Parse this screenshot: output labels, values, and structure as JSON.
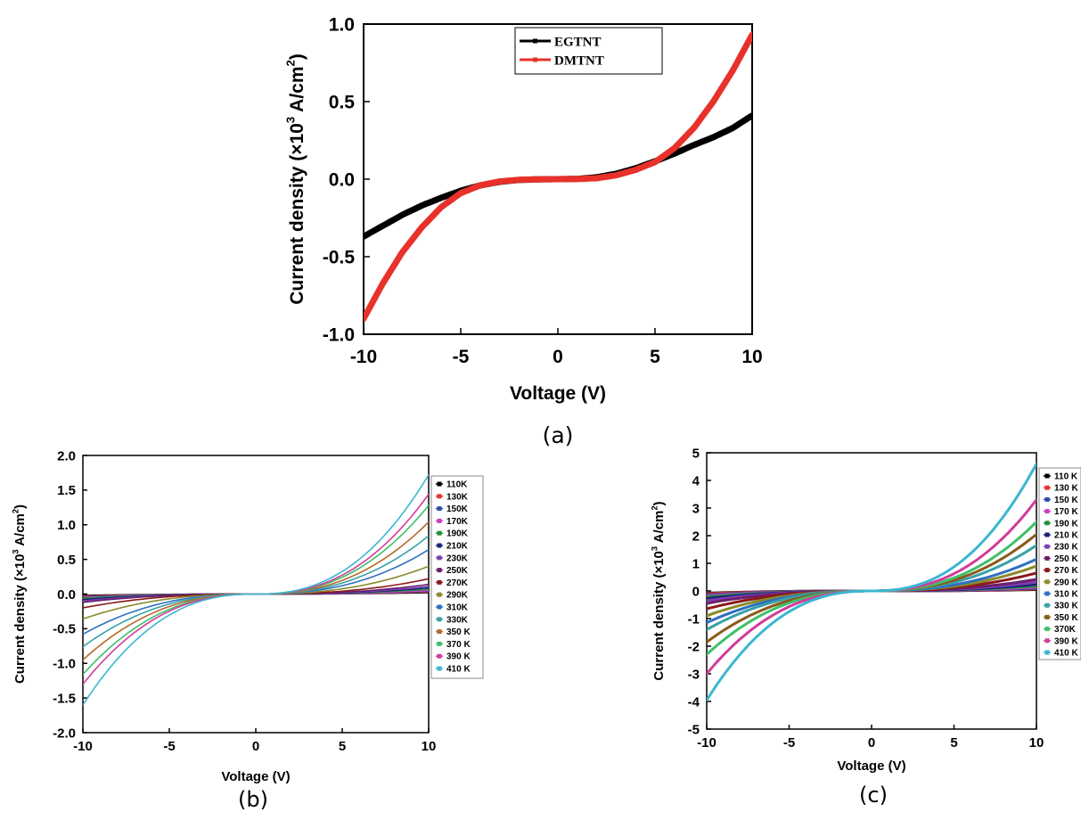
{
  "chart_data": [
    {
      "type": "line",
      "panel_label": "(a)",
      "xlabel": "Voltage (V)",
      "ylabel_main": "Current density (×10",
      "ylabel_exp": "3",
      "ylabel_unit": " A/cm",
      "ylabel_unit_exp": "2",
      "ylabel_close": ")",
      "xlim": [
        -10,
        10
      ],
      "ylim": [
        -1.0,
        1.0
      ],
      "xticks": [
        "-10",
        "-5",
        "0",
        "5",
        "10"
      ],
      "yticks": [
        "-1.0",
        "-0.5",
        "0.0",
        "0.5",
        "1.0"
      ],
      "legend_position": "top-right",
      "series": [
        {
          "name": "EGTNT",
          "color": "#000000",
          "x": [
            -10,
            -9,
            -8,
            -7,
            -6,
            -5,
            -4,
            -3,
            -2,
            -1,
            0,
            1,
            2,
            3,
            4,
            5,
            6,
            7,
            8,
            9,
            10
          ],
          "y": [
            -0.37,
            -0.3,
            -0.23,
            -0.17,
            -0.12,
            -0.075,
            -0.04,
            -0.017,
            -0.005,
            -0.001,
            0,
            0.002,
            0.012,
            0.035,
            0.07,
            0.115,
            0.165,
            0.22,
            0.27,
            0.33,
            0.41
          ]
        },
        {
          "name": "DMTNT",
          "color": "#e8312a",
          "x": [
            -10,
            -9,
            -8,
            -7,
            -6,
            -5,
            -4,
            -3,
            -2,
            -1,
            0,
            1,
            2,
            3,
            4,
            5,
            6,
            7,
            8,
            9,
            10
          ],
          "y": [
            -0.9,
            -0.67,
            -0.47,
            -0.31,
            -0.18,
            -0.09,
            -0.04,
            -0.015,
            -0.004,
            -0.001,
            0,
            0.001,
            0.006,
            0.025,
            0.06,
            0.11,
            0.2,
            0.33,
            0.5,
            0.7,
            0.93
          ]
        }
      ]
    },
    {
      "type": "line",
      "panel_label": "(b)",
      "xlabel": "Voltage (V)",
      "ylabel_main": "Current density (×10",
      "ylabel_exp": "3",
      "ylabel_unit": " A/cm",
      "ylabel_unit_exp": "2",
      "ylabel_close": ")",
      "xlim": [
        -10,
        10
      ],
      "ylim": [
        -2.0,
        2.0
      ],
      "xticks": [
        "-10",
        "-5",
        "0",
        "5",
        "10"
      ],
      "yticks": [
        "-2.0",
        "-1.5",
        "-1.0",
        "-0.5",
        "0.0",
        "0.5",
        "1.0",
        "1.5",
        "2.0"
      ],
      "legend_position": "right",
      "series": [
        {
          "name": "110K",
          "color": "#000000",
          "neg10": -0.02,
          "pos10": 0.02
        },
        {
          "name": "130K",
          "color": "#e8312a",
          "neg10": -0.03,
          "pos10": 0.03
        },
        {
          "name": "150K",
          "color": "#2b4aa8",
          "neg10": -0.04,
          "pos10": 0.04
        },
        {
          "name": "170K",
          "color": "#c83fc8",
          "neg10": -0.05,
          "pos10": 0.05
        },
        {
          "name": "190K",
          "color": "#1f8f3a",
          "neg10": -0.06,
          "pos10": 0.07
        },
        {
          "name": "210K",
          "color": "#1b1f7a",
          "neg10": -0.08,
          "pos10": 0.09
        },
        {
          "name": "230K",
          "color": "#7a3fb0",
          "neg10": -0.1,
          "pos10": 0.11
        },
        {
          "name": "250K",
          "color": "#6b1f6b",
          "neg10": -0.12,
          "pos10": 0.14
        },
        {
          "name": "270K",
          "color": "#8b1a1a",
          "neg10": -0.2,
          "pos10": 0.22
        },
        {
          "name": "290K",
          "color": "#8a8a2a",
          "neg10": -0.36,
          "pos10": 0.4
        },
        {
          "name": "310K",
          "color": "#2f6fc0",
          "neg10": -0.58,
          "pos10": 0.64
        },
        {
          "name": "330K",
          "color": "#3aa0a8",
          "neg10": -0.76,
          "pos10": 0.84
        },
        {
          "name": "350 K",
          "color": "#b56a2a",
          "neg10": -0.95,
          "pos10": 1.04
        },
        {
          "name": "370 K",
          "color": "#3fbf6a",
          "neg10": -1.16,
          "pos10": 1.28
        },
        {
          "name": "390 K",
          "color": "#d03c9a",
          "neg10": -1.3,
          "pos10": 1.44
        },
        {
          "name": "410 K",
          "color": "#3ab7d0",
          "neg10": -1.6,
          "pos10": 1.72
        }
      ]
    },
    {
      "type": "line",
      "panel_label": "(c)",
      "xlabel": "Voltage (V)",
      "ylabel_main": "Current density (×10",
      "ylabel_exp": "3",
      "ylabel_unit": " A/cm",
      "ylabel_unit_exp": "2",
      "ylabel_close": ")",
      "xlim": [
        -10,
        10
      ],
      "ylim": [
        -5,
        5
      ],
      "xticks": [
        "-10",
        "-5",
        "0",
        "5",
        "10"
      ],
      "yticks": [
        "-5",
        "-4",
        "-3",
        "-2",
        "-1",
        "0",
        "1",
        "2",
        "3",
        "4",
        "5"
      ],
      "legend_position": "right",
      "series": [
        {
          "name": "110 K",
          "color": "#000000",
          "neg10": -0.08,
          "pos10": 0.05
        },
        {
          "name": "130 K",
          "color": "#e8312a",
          "neg10": -0.1,
          "pos10": 0.07
        },
        {
          "name": "150 K",
          "color": "#2b4aa8",
          "neg10": -0.14,
          "pos10": 0.1
        },
        {
          "name": "170 K",
          "color": "#c83fc8",
          "neg10": -0.18,
          "pos10": 0.14
        },
        {
          "name": "190 K",
          "color": "#1f8f3a",
          "neg10": -0.22,
          "pos10": 0.18
        },
        {
          "name": "210 K",
          "color": "#1b1f7a",
          "neg10": -0.28,
          "pos10": 0.24
        },
        {
          "name": "230 K",
          "color": "#7a3fb0",
          "neg10": -0.35,
          "pos10": 0.32
        },
        {
          "name": "250 K",
          "color": "#6b1f6b",
          "neg10": -0.45,
          "pos10": 0.42
        },
        {
          "name": "270 K",
          "color": "#8b1a1a",
          "neg10": -0.65,
          "pos10": 0.65
        },
        {
          "name": "290 K",
          "color": "#8a8a2a",
          "neg10": -0.9,
          "pos10": 0.9
        },
        {
          "name": "310 K",
          "color": "#2f6fc0",
          "neg10": -1.15,
          "pos10": 1.15
        },
        {
          "name": "330 K",
          "color": "#3aa0a8",
          "neg10": -1.4,
          "pos10": 1.65
        },
        {
          "name": "350 K",
          "color": "#8a5a1a",
          "neg10": -1.85,
          "pos10": 2.05
        },
        {
          "name": "370K",
          "color": "#3fbf6a",
          "neg10": -2.3,
          "pos10": 2.5
        },
        {
          "name": "390 K",
          "color": "#d03c9a",
          "neg10": -3.0,
          "pos10": 3.3
        },
        {
          "name": "410 K",
          "color": "#3ab7d0",
          "neg10": -3.95,
          "pos10": 4.6
        }
      ]
    }
  ]
}
